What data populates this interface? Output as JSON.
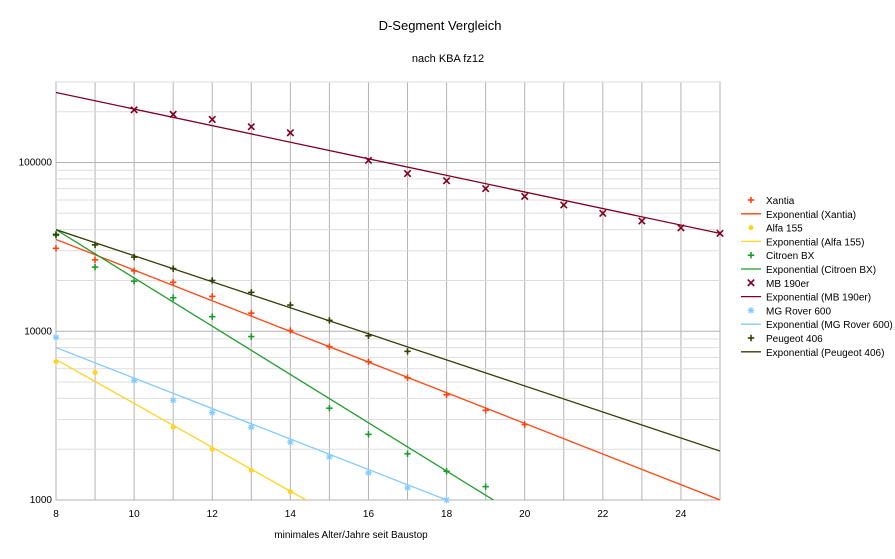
{
  "chart_data": {
    "type": "scatter",
    "title": "D-Segment Vergleich",
    "subtitle": "nach KBA fz12",
    "xlabel": "minimales Alter/Jahre seit Baustop",
    "ylabel": "",
    "xlim": [
      8,
      25
    ],
    "ylim": [
      1000,
      300000
    ],
    "yscale": "log",
    "x_ticks": [
      "8",
      "10",
      "12",
      "14",
      "16",
      "18",
      "20",
      "22",
      "24"
    ],
    "y_ticks": [
      "1000",
      "10000",
      "100000"
    ],
    "grid": "on",
    "legend_position": "right",
    "series": [
      {
        "name": "Xantia",
        "marker": "plus",
        "color": "#ff420e",
        "points": [
          [
            8,
            31000
          ],
          [
            9,
            26500
          ],
          [
            10,
            22800
          ],
          [
            11,
            19500
          ],
          [
            12,
            16100
          ],
          [
            13,
            12800
          ],
          [
            14,
            10100
          ],
          [
            15,
            8100
          ],
          [
            16,
            6600
          ],
          [
            17,
            5300
          ],
          [
            18,
            4200
          ],
          [
            19,
            3400
          ],
          [
            20,
            2800
          ]
        ],
        "trend_name": "Exponential (Xantia)",
        "trend": [
          [
            8,
            35000
          ],
          [
            25,
            1000
          ]
        ]
      },
      {
        "name": "Alfa 155",
        "marker": "dot",
        "color": "#ffd320",
        "points": [
          [
            8,
            6600
          ],
          [
            9,
            5700
          ],
          [
            11,
            2700
          ],
          [
            12,
            2000
          ],
          [
            13,
            1500
          ],
          [
            14,
            1120
          ]
        ],
        "trend_name": "Exponential (Alfa 155)",
        "trend": [
          [
            8,
            6800
          ],
          [
            14.4,
            1000
          ]
        ]
      },
      {
        "name": "Citroen BX",
        "marker": "plus",
        "color": "#1c9c2a",
        "points": [
          [
            8,
            37000
          ],
          [
            9,
            24000
          ],
          [
            10,
            19800
          ],
          [
            11,
            15800
          ],
          [
            12,
            12200
          ],
          [
            13,
            9300
          ],
          [
            15,
            3500
          ],
          [
            16,
            2450
          ],
          [
            17,
            1880
          ],
          [
            18,
            1480
          ],
          [
            19,
            1200
          ]
        ],
        "trend_name": "Exponential (Citroen BX)",
        "trend": [
          [
            8,
            40000
          ],
          [
            19.2,
            1000
          ]
        ]
      },
      {
        "name": "MB 190er",
        "marker": "cross",
        "color": "#7e0021",
        "points": [
          [
            10,
            205000
          ],
          [
            11,
            193000
          ],
          [
            12,
            180000
          ],
          [
            13,
            163000
          ],
          [
            14,
            150000
          ],
          [
            16,
            103000
          ],
          [
            17,
            86000
          ],
          [
            18,
            78000
          ],
          [
            19,
            70000
          ],
          [
            20,
            63000
          ],
          [
            21,
            56000
          ],
          [
            22,
            50000
          ],
          [
            23,
            45000
          ],
          [
            24,
            41000
          ],
          [
            25,
            38000
          ]
        ],
        "trend_name": "Exponential (MB 190er)",
        "trend": [
          [
            8,
            260000
          ],
          [
            25,
            38000
          ]
        ]
      },
      {
        "name": "MG Rover 600",
        "marker": "star",
        "color": "#83caff",
        "points": [
          [
            8,
            9200
          ],
          [
            10,
            5100
          ],
          [
            11,
            3900
          ],
          [
            12,
            3300
          ],
          [
            13,
            2700
          ],
          [
            14,
            2200
          ],
          [
            15,
            1800
          ],
          [
            16,
            1450
          ],
          [
            17,
            1180
          ],
          [
            18,
            1000
          ]
        ],
        "trend_name": "Exponential (MG Rover 600)",
        "trend": [
          [
            8,
            8000
          ],
          [
            18,
            1000
          ]
        ]
      },
      {
        "name": "Peugeot 406",
        "marker": "plus",
        "color": "#314004",
        "points": [
          [
            8,
            37500
          ],
          [
            9,
            32500
          ],
          [
            10,
            27500
          ],
          [
            11,
            23500
          ],
          [
            12,
            20000
          ],
          [
            13,
            17000
          ],
          [
            14,
            14300
          ],
          [
            15,
            11600
          ],
          [
            16,
            9400
          ],
          [
            17,
            7600
          ]
        ],
        "trend_name": "Exponential (Peugeot 406)",
        "trend": [
          [
            8,
            40000
          ],
          [
            25,
            1950
          ]
        ]
      }
    ]
  }
}
